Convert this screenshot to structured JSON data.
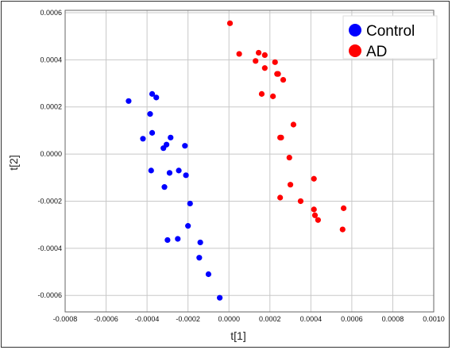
{
  "chart_data": {
    "type": "scatter",
    "title": "",
    "xlabel": "t[1]",
    "ylabel": "t[2]",
    "xlim": [
      -0.0008,
      0.001
    ],
    "ylim": [
      -0.00067,
      0.00061
    ],
    "grid": true,
    "legend_placement": "top-right",
    "x_ticks": [
      "-0.0008",
      "-0.0006",
      "-0.0004",
      "-0.0002",
      "0.0000",
      "0.0002",
      "0.0004",
      "0.0006",
      "0.0008",
      "0.0010"
    ],
    "y_ticks": [
      "-0.0006",
      "-0.0004",
      "-0.0002",
      "0.0000",
      "0.0002",
      "0.0004",
      "0.0006"
    ],
    "series": [
      {
        "name": "Control",
        "color": "#0000ff",
        "points": [
          [
            -0.00049,
            0.000225
          ],
          [
            -0.000375,
            0.000255
          ],
          [
            -0.000355,
            0.00024
          ],
          [
            -0.000385,
            0.00017
          ],
          [
            -0.000375,
            9e-05
          ],
          [
            -0.00042,
            6.5e-05
          ],
          [
            -0.000285,
            7e-05
          ],
          [
            -0.00032,
            2.5e-05
          ],
          [
            -0.000305,
            4e-05
          ],
          [
            -0.000215,
            3.5e-05
          ],
          [
            -0.00038,
            -7e-05
          ],
          [
            -0.00029,
            -8e-05
          ],
          [
            -0.000245,
            -7e-05
          ],
          [
            -0.00021,
            -9e-05
          ],
          [
            -0.000315,
            -0.00014
          ],
          [
            -0.00019,
            -0.00021
          ],
          [
            -0.0002,
            -0.000305
          ],
          [
            -0.0003,
            -0.000365
          ],
          [
            -0.00025,
            -0.00036
          ],
          [
            -0.00014,
            -0.000375
          ],
          [
            -0.000145,
            -0.00044
          ],
          [
            -0.0001,
            -0.00051
          ],
          [
            -4.5e-05,
            -0.00061
          ]
        ]
      },
      {
        "name": "AD",
        "color": "#ff0000",
        "points": [
          [
            5e-06,
            0.000555
          ],
          [
            5e-05,
            0.000425
          ],
          [
            0.000145,
            0.00043
          ],
          [
            0.000175,
            0.00042
          ],
          [
            0.00013,
            0.000395
          ],
          [
            0.000225,
            0.00039
          ],
          [
            0.000175,
            0.000365
          ],
          [
            0.000235,
            0.00034
          ],
          [
            0.00024,
            0.00034
          ],
          [
            0.000265,
            0.000315
          ],
          [
            0.00016,
            0.000255
          ],
          [
            0.000215,
            0.000245
          ],
          [
            0.000315,
            0.000125
          ],
          [
            0.000255,
            7e-05
          ],
          [
            0.00025,
            7e-05
          ],
          [
            0.000295,
            -1.5e-05
          ],
          [
            0.0003,
            -0.00013
          ],
          [
            0.000415,
            -0.000105
          ],
          [
            0.00025,
            -0.000185
          ],
          [
            0.00035,
            -0.0002
          ],
          [
            0.000415,
            -0.000235
          ],
          [
            0.00042,
            -0.00026
          ],
          [
            0.000435,
            -0.00028
          ],
          [
            0.00056,
            -0.00023
          ],
          [
            0.000555,
            -0.00032
          ]
        ]
      }
    ]
  }
}
